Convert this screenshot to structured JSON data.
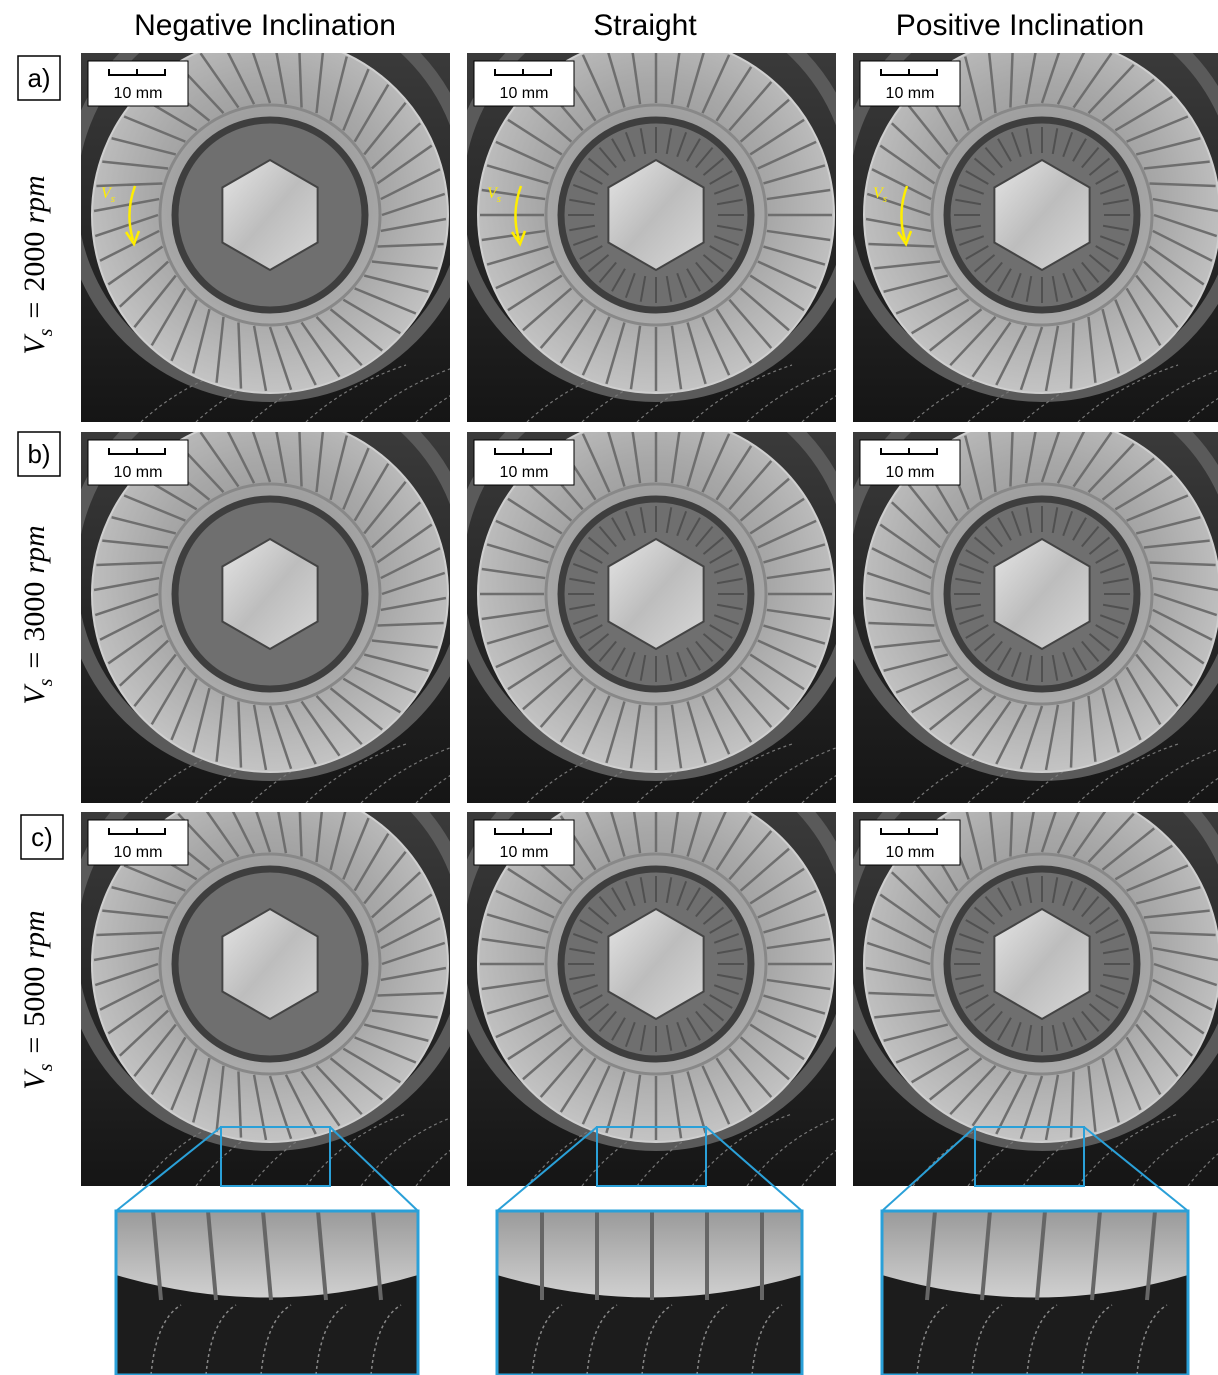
{
  "columns": [
    "Negative Inclination",
    "Straight",
    "Positive Inclination"
  ],
  "rows": [
    {
      "label": "a)",
      "speed": {
        "symbol": "V",
        "subscript": "s",
        "equals": "=",
        "value": "2000",
        "unit": "rpm"
      },
      "panels": [
        {
          "scale_bar": "10 mm",
          "velocity": "V",
          "velocity_subscript": "s"
        },
        {
          "scale_bar": "10 mm",
          "velocity": "V",
          "velocity_subscript": "s"
        },
        {
          "scale_bar": "10 mm",
          "velocity": "V",
          "velocity_subscript": "s"
        }
      ]
    },
    {
      "label": "b)",
      "speed": {
        "symbol": "V",
        "subscript": "s",
        "equals": "=",
        "value": "3000",
        "unit": "rpm"
      },
      "panels": [
        {
          "scale_bar": "10 mm"
        },
        {
          "scale_bar": "10 mm"
        },
        {
          "scale_bar": "10 mm"
        }
      ]
    },
    {
      "label": "c)",
      "speed": {
        "symbol": "V",
        "subscript": "s",
        "equals": "=",
        "value": "5000",
        "unit": "rpm"
      },
      "panels": [
        {
          "scale_bar": "10 mm"
        },
        {
          "scale_bar": "10 mm"
        },
        {
          "scale_bar": "10 mm"
        }
      ]
    }
  ]
}
